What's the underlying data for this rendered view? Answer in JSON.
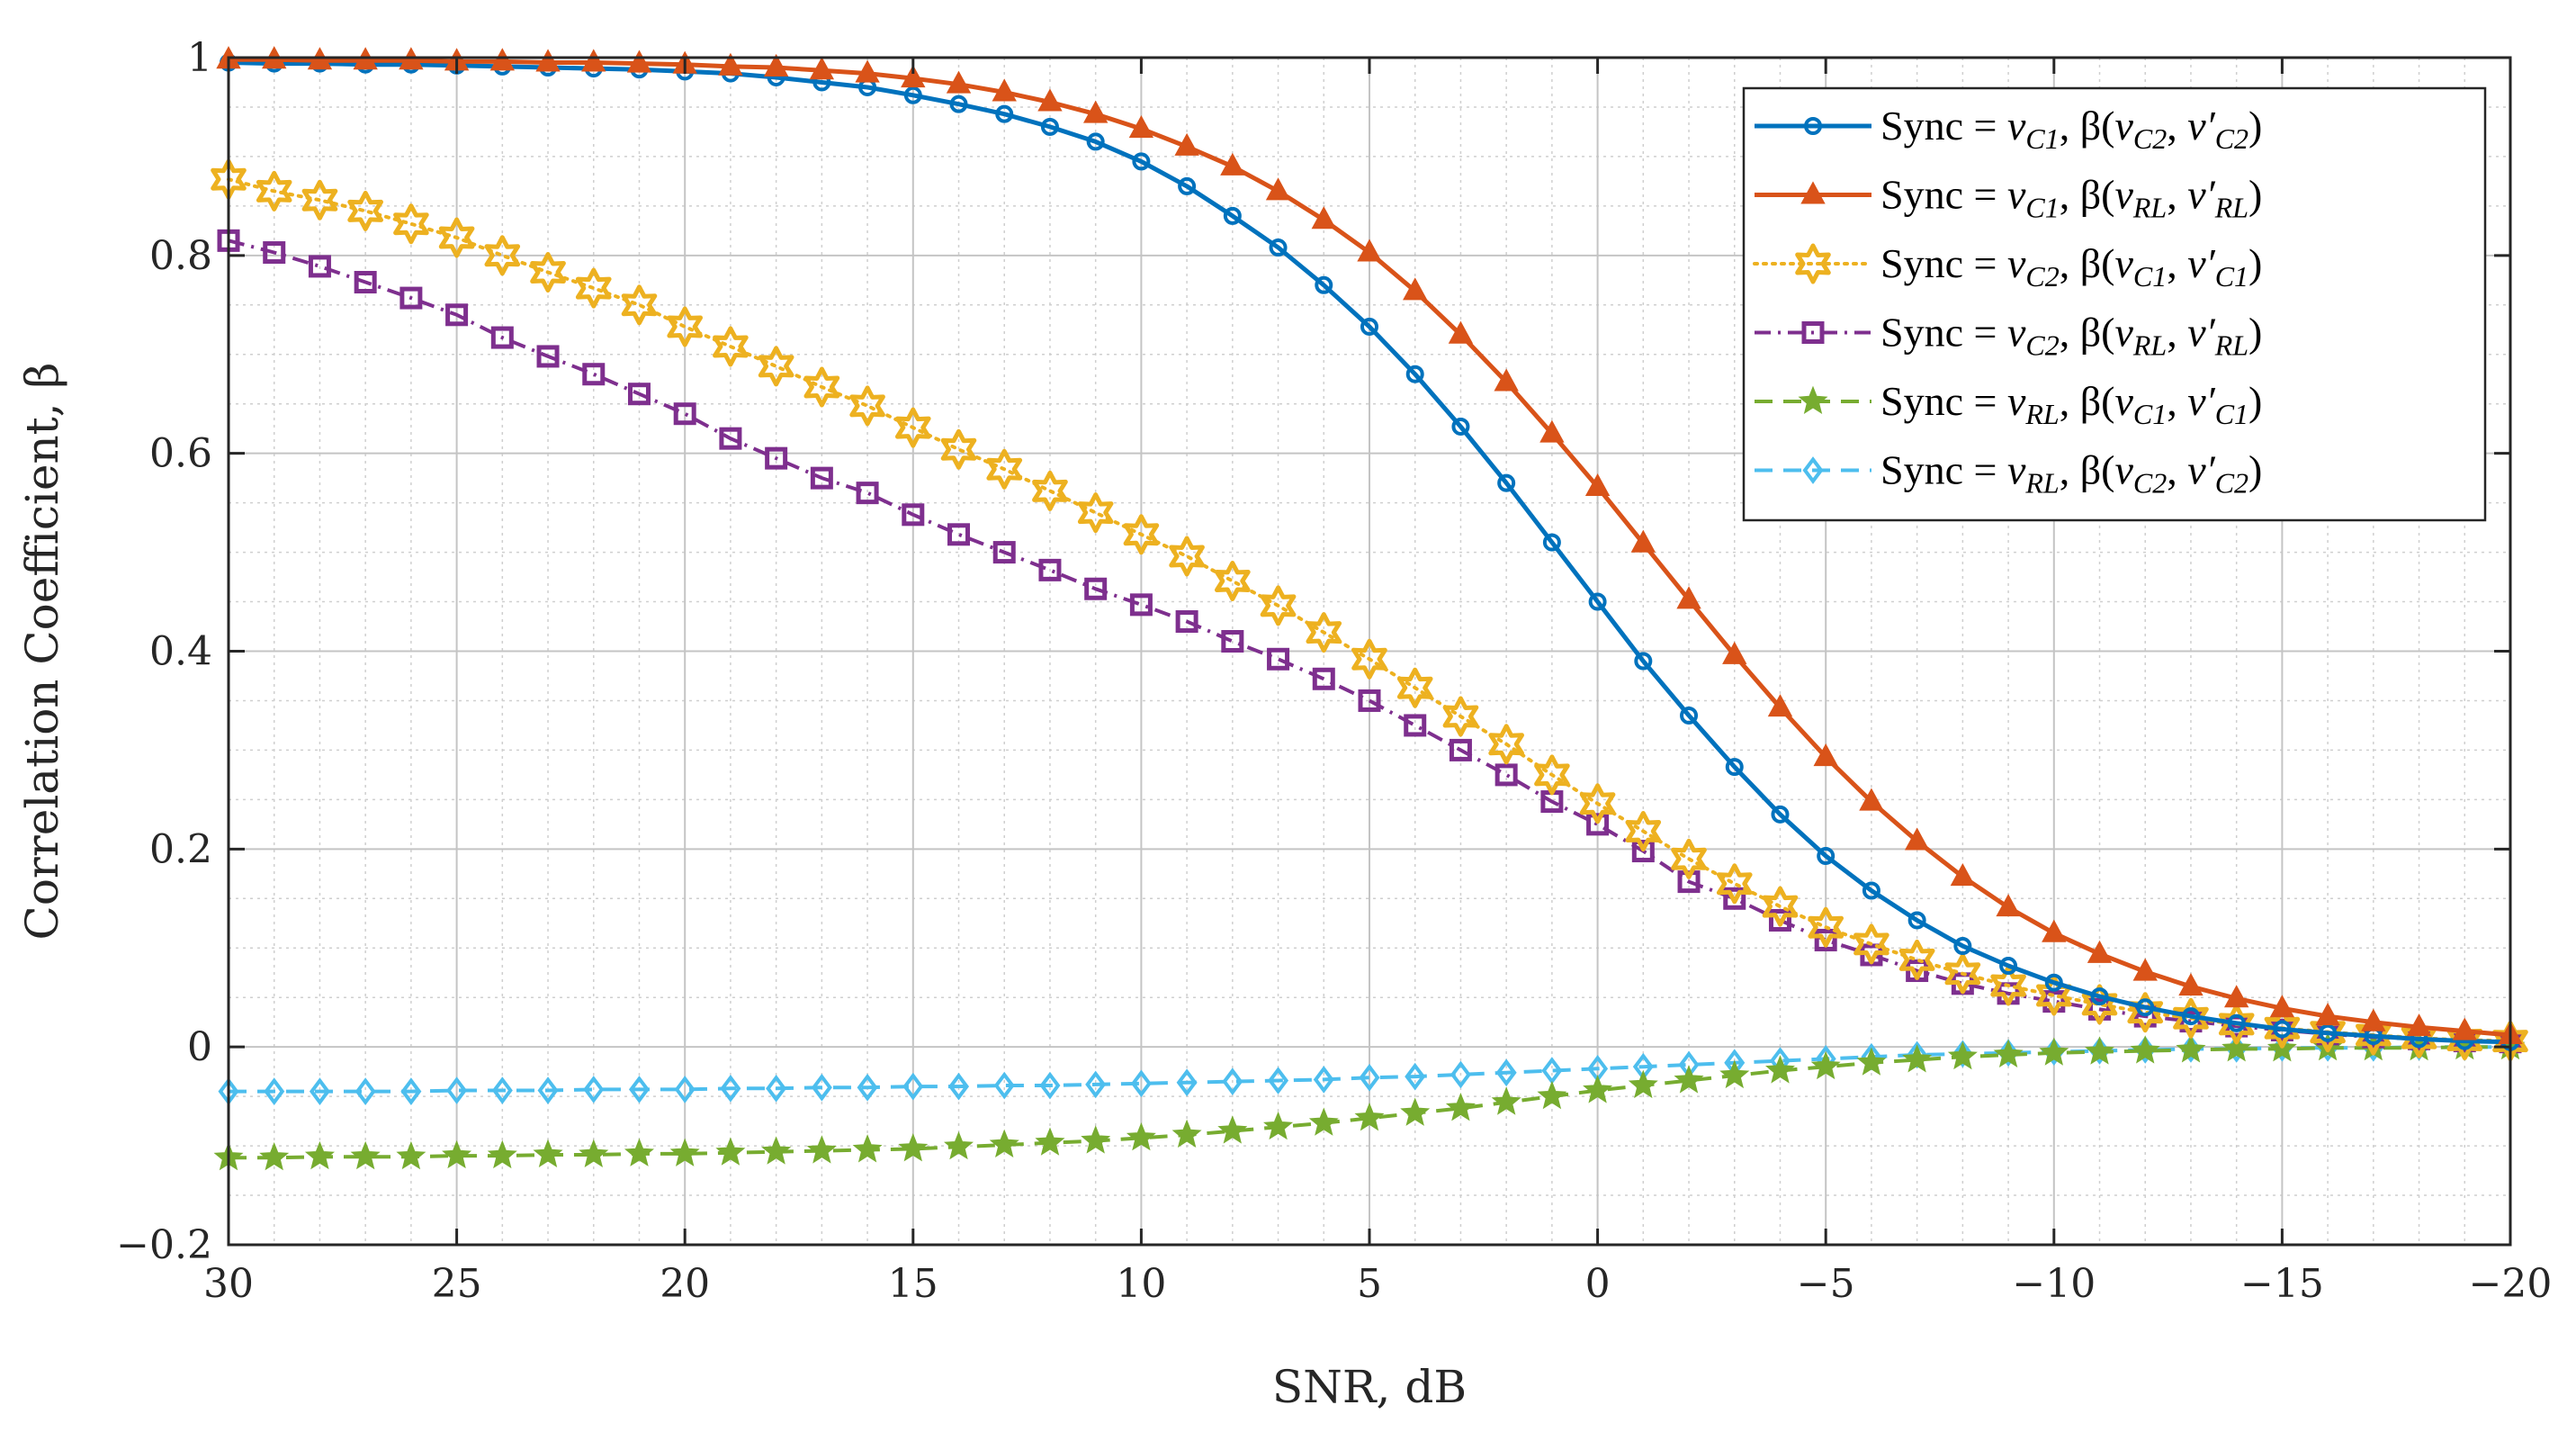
{
  "chart_data": {
    "type": "line",
    "title": "",
    "xlabel": "SNR, dB",
    "ylabel": "Correlation Coefficient, β",
    "xlim": [
      30,
      -20
    ],
    "ylim": [
      -0.2,
      1
    ],
    "x_reversed": true,
    "grid": true,
    "minor_grid": true,
    "legend_position": "top-right",
    "x_ticks": [
      30,
      25,
      20,
      15,
      10,
      5,
      0,
      -5,
      -10,
      -15,
      -20
    ],
    "x_tick_labels": [
      "30",
      "25",
      "20",
      "15",
      "10",
      "5",
      "0",
      "−5",
      "−10",
      "−15",
      "−20"
    ],
    "y_ticks": [
      -0.2,
      0,
      0.2,
      0.4,
      0.6,
      0.8,
      1
    ],
    "y_tick_labels": [
      "−0.2",
      "0",
      "0.2",
      "0.4",
      "0.6",
      "0.8",
      "1"
    ],
    "x": [
      30,
      29,
      28,
      27,
      26,
      25,
      24,
      23,
      22,
      21,
      20,
      19,
      18,
      17,
      16,
      15,
      14,
      13,
      12,
      11,
      10,
      9,
      8,
      7,
      6,
      5,
      4,
      3,
      2,
      1,
      0,
      -1,
      -2,
      -3,
      -4,
      -5,
      -6,
      -7,
      -8,
      -9,
      -10,
      -11,
      -12,
      -13,
      -14,
      -15,
      -16,
      -17,
      -18,
      -19,
      -20
    ],
    "series": [
      {
        "name": "Sync = vC1, β(vC2, v′C2)",
        "legend_parts": [
          "Sync = ",
          "v",
          "C1",
          ", β(",
          "v",
          "C2",
          ", ",
          "v′",
          "C2",
          ")"
        ],
        "color": "#0072BD",
        "line": "solid",
        "marker": "circle",
        "values": [
          0.995,
          0.994,
          0.994,
          0.993,
          0.993,
          0.992,
          0.991,
          0.99,
          0.989,
          0.988,
          0.986,
          0.984,
          0.98,
          0.975,
          0.97,
          0.962,
          0.953,
          0.943,
          0.93,
          0.915,
          0.895,
          0.87,
          0.84,
          0.808,
          0.77,
          0.728,
          0.68,
          0.627,
          0.57,
          0.51,
          0.45,
          0.39,
          0.335,
          0.283,
          0.235,
          0.193,
          0.158,
          0.128,
          0.102,
          0.082,
          0.065,
          0.051,
          0.04,
          0.031,
          0.024,
          0.018,
          0.014,
          0.011,
          0.008,
          0.006,
          0.005
        ]
      },
      {
        "name": "Sync = vC1, β(vRL, v′RL)",
        "legend_parts": [
          "Sync = ",
          "v",
          "C1",
          ", β(",
          "v",
          "RL",
          ", ",
          "v′",
          "RL",
          ")"
        ],
        "color": "#D95319",
        "line": "solid",
        "marker": "triangle",
        "values": [
          0.998,
          0.998,
          0.997,
          0.997,
          0.997,
          0.996,
          0.996,
          0.995,
          0.995,
          0.994,
          0.993,
          0.991,
          0.99,
          0.987,
          0.984,
          0.979,
          0.973,
          0.965,
          0.955,
          0.943,
          0.928,
          0.91,
          0.89,
          0.865,
          0.836,
          0.803,
          0.764,
          0.72,
          0.672,
          0.62,
          0.566,
          0.509,
          0.452,
          0.396,
          0.343,
          0.293,
          0.248,
          0.208,
          0.172,
          0.141,
          0.115,
          0.094,
          0.076,
          0.061,
          0.049,
          0.039,
          0.031,
          0.025,
          0.02,
          0.016,
          0.012
        ]
      },
      {
        "name": "Sync = vC2, β(vC1, v′C1)",
        "legend_parts": [
          "Sync = ",
          "v",
          "C2",
          ", β(",
          "v",
          "C1",
          ", ",
          "v′",
          "C1",
          ")"
        ],
        "color": "#EDB120",
        "line": "dotted",
        "marker": "hexagram",
        "values": [
          0.877,
          0.865,
          0.856,
          0.845,
          0.832,
          0.818,
          0.8,
          0.783,
          0.767,
          0.75,
          0.728,
          0.708,
          0.688,
          0.667,
          0.648,
          0.626,
          0.604,
          0.584,
          0.562,
          0.54,
          0.518,
          0.496,
          0.471,
          0.446,
          0.419,
          0.392,
          0.363,
          0.334,
          0.306,
          0.275,
          0.246,
          0.218,
          0.19,
          0.165,
          0.142,
          0.121,
          0.104,
          0.088,
          0.074,
          0.062,
          0.052,
          0.043,
          0.035,
          0.029,
          0.023,
          0.019,
          0.015,
          0.012,
          0.009,
          0.007,
          0.006
        ]
      },
      {
        "name": "Sync = vC2, β(vRL, v′RL)",
        "legend_parts": [
          "Sync = ",
          "v",
          "C2",
          ", β(",
          "v",
          "RL",
          ", ",
          "v′",
          "RL",
          ")"
        ],
        "color": "#7E2F8E",
        "line": "dashdot",
        "marker": "square",
        "values": [
          0.815,
          0.803,
          0.789,
          0.773,
          0.757,
          0.74,
          0.717,
          0.698,
          0.68,
          0.66,
          0.64,
          0.615,
          0.595,
          0.575,
          0.56,
          0.538,
          0.518,
          0.5,
          0.482,
          0.463,
          0.447,
          0.43,
          0.41,
          0.392,
          0.372,
          0.35,
          0.325,
          0.3,
          0.275,
          0.248,
          0.225,
          0.198,
          0.167,
          0.15,
          0.128,
          0.108,
          0.093,
          0.077,
          0.064,
          0.054,
          0.046,
          0.038,
          0.031,
          0.026,
          0.021,
          0.017,
          0.013,
          0.01,
          0.008,
          0.006,
          0.005
        ]
      },
      {
        "name": "Sync = vRL, β(vC1, v′C1)",
        "legend_parts": [
          "Sync = ",
          "v",
          "RL",
          ", β(",
          "v",
          "C1",
          ", ",
          "v′",
          "C1",
          ")"
        ],
        "color": "#77AC30",
        "line": "dashed",
        "marker": "pentagram",
        "values": [
          -0.112,
          -0.112,
          -0.111,
          -0.111,
          -0.111,
          -0.11,
          -0.11,
          -0.109,
          -0.109,
          -0.108,
          -0.108,
          -0.107,
          -0.106,
          -0.105,
          -0.104,
          -0.103,
          -0.101,
          -0.099,
          -0.097,
          -0.095,
          -0.092,
          -0.089,
          -0.085,
          -0.081,
          -0.077,
          -0.072,
          -0.067,
          -0.062,
          -0.056,
          -0.05,
          -0.044,
          -0.039,
          -0.034,
          -0.029,
          -0.024,
          -0.02,
          -0.016,
          -0.013,
          -0.01,
          -0.008,
          -0.006,
          -0.005,
          -0.004,
          -0.003,
          -0.002,
          -0.002,
          -0.001,
          -0.001,
          -0.001,
          0.0,
          0.0
        ]
      },
      {
        "name": "Sync = vRL, β(vC2, v′C2)",
        "legend_parts": [
          "Sync = ",
          "v",
          "RL",
          ", β(",
          "v",
          "C2",
          ", ",
          "v′",
          "C2",
          ")"
        ],
        "color": "#4DBEEE",
        "line": "dashed",
        "marker": "diamond",
        "values": [
          -0.045,
          -0.045,
          -0.045,
          -0.045,
          -0.045,
          -0.044,
          -0.044,
          -0.044,
          -0.043,
          -0.043,
          -0.043,
          -0.042,
          -0.042,
          -0.041,
          -0.041,
          -0.04,
          -0.04,
          -0.039,
          -0.039,
          -0.038,
          -0.037,
          -0.036,
          -0.035,
          -0.034,
          -0.033,
          -0.031,
          -0.03,
          -0.028,
          -0.026,
          -0.024,
          -0.022,
          -0.02,
          -0.018,
          -0.016,
          -0.014,
          -0.012,
          -0.01,
          -0.008,
          -0.007,
          -0.006,
          -0.005,
          -0.004,
          -0.003,
          -0.002,
          -0.002,
          -0.001,
          -0.001,
          -0.001,
          0.0,
          0.0,
          0.0
        ]
      }
    ]
  }
}
